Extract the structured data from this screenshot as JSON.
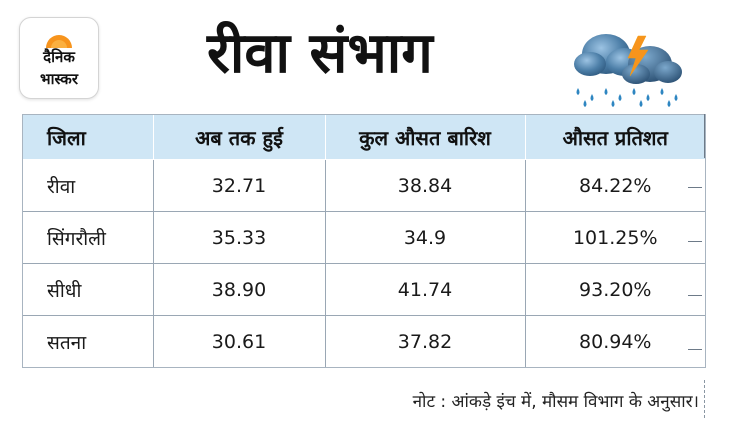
{
  "logo": {
    "line1": "दैनिक",
    "line2": "भास्कर",
    "sun_color": "#f7941d"
  },
  "title": "रीवा संभाग",
  "weather_icon": "rain-cloud-lightning-icon",
  "colors": {
    "header_bg": "#cfe6f5",
    "cloud": "#4a7ea8",
    "rain": "#2e86c1",
    "lightning": "#f7941d"
  },
  "table": {
    "headers": [
      "जिला",
      "अब तक हुई",
      "कुल औसत बारिश",
      "औसत प्रतिशत"
    ],
    "rows": [
      [
        "रीवा",
        "32.71",
        "38.84",
        "84.22%"
      ],
      [
        "सिंगरौली",
        "35.33",
        "34.9",
        "101.25%"
      ],
      [
        "सीधी",
        "38.90",
        "41.74",
        "93.20%"
      ],
      [
        "सतना",
        "30.61",
        "37.82",
        "80.94%"
      ]
    ]
  },
  "note": "नोट : आंकड़े इंच में, मौसम विभाग के अनुसार।"
}
